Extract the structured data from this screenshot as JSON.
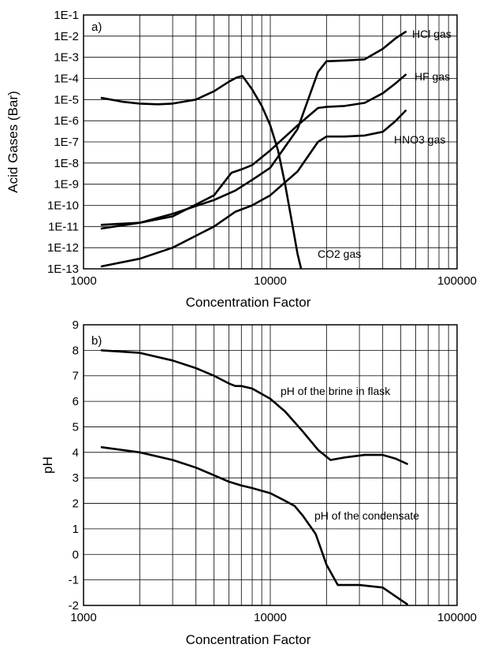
{
  "chart_data": [
    {
      "type": "line",
      "panel_label": "a)",
      "xlabel": "Concentration Factor",
      "ylabel": "Acid Gases (Bar)",
      "xscale": "log",
      "yscale": "log",
      "xlim": [
        1000,
        100000
      ],
      "ylim": [
        1e-13,
        0.1
      ],
      "grid": true,
      "x_ticks": [
        1000,
        10000,
        100000
      ],
      "x_tick_labels": [
        "1000",
        "10000",
        "100000"
      ],
      "y_ticks": [
        1e-13,
        1e-12,
        1e-11,
        1e-10,
        1e-09,
        1e-08,
        1e-07,
        1e-06,
        1e-05,
        0.0001,
        0.001,
        0.01,
        0.1
      ],
      "y_tick_labels": [
        "1E-13",
        "1E-12",
        "1E-11",
        "1E-10",
        "1E-9",
        "1E-8",
        "1E-7",
        "1E-6",
        "1E-5",
        "1E-4",
        "1E-3",
        "1E-2",
        "1E-1"
      ],
      "series": [
        {
          "name": "HCl gas",
          "x": [
            1250,
            2000,
            3000,
            5000,
            6500,
            8000,
            10000,
            14000,
            18000,
            20000,
            25000,
            32000,
            40000,
            47000,
            53000
          ],
          "y": [
            1.2e-11,
            1.5e-11,
            4e-11,
            1.8e-10,
            5e-10,
            1.6e-09,
            6e-09,
            4e-07,
            0.0002,
            0.00065,
            0.0007,
            0.0008,
            0.0025,
            0.008,
            0.016
          ]
        },
        {
          "name": "HF gas",
          "x": [
            1250,
            2000,
            3000,
            5000,
            6200,
            7000,
            8000,
            10000,
            14000,
            18000,
            20000,
            25000,
            32000,
            40000,
            47000,
            53000
          ],
          "y": [
            8e-12,
            1.5e-11,
            3e-11,
            3e-10,
            3.5e-09,
            5e-09,
            8e-09,
            4e-08,
            6e-07,
            4e-06,
            4.5e-06,
            5e-06,
            7e-06,
            2e-05,
            6e-05,
            0.00015
          ]
        },
        {
          "name": "HNO3 gas",
          "x": [
            1250,
            2000,
            3000,
            5000,
            6500,
            8000,
            10000,
            14000,
            18000,
            20000,
            25000,
            32000,
            40000,
            47000,
            53000
          ],
          "y": [
            1.3e-13,
            3e-13,
            1e-12,
            1e-11,
            5e-11,
            1e-10,
            3e-10,
            4e-09,
            1e-07,
            1.8e-07,
            1.8e-07,
            2e-07,
            3e-07,
            1e-06,
            3e-06
          ]
        },
        {
          "name": "CO2 gas",
          "x": [
            1250,
            1600,
            2000,
            2500,
            3000,
            4000,
            5000,
            6000,
            6600,
            7100,
            8000,
            9000,
            10000,
            11000,
            12000,
            13000,
            14000,
            15000
          ],
          "y": [
            1.2e-05,
            8e-06,
            6.5e-06,
            6e-06,
            6.5e-06,
            1e-05,
            2.5e-05,
            7e-05,
            0.00011,
            0.00013,
            3e-05,
            5e-06,
            6e-07,
            4e-08,
            1e-09,
            2e-11,
            5e-13,
            4e-14
          ]
        }
      ],
      "annotations": [
        {
          "text": "HCl gas",
          "series": "HCl gas"
        },
        {
          "text": "HF gas",
          "series": "HF gas"
        },
        {
          "text": "HNO3 gas",
          "series": "HNO3 gas"
        },
        {
          "text": "CO2 gas",
          "series": "CO2 gas"
        }
      ]
    },
    {
      "type": "line",
      "panel_label": "b)",
      "xlabel": "Concentration Factor",
      "ylabel": "pH",
      "xscale": "log",
      "xlim": [
        1000,
        100000
      ],
      "ylim": [
        -2,
        9
      ],
      "grid": true,
      "x_ticks": [
        1000,
        10000,
        100000
      ],
      "x_tick_labels": [
        "1000",
        "10000",
        "100000"
      ],
      "y_ticks": [
        -2,
        -1,
        0,
        1,
        2,
        3,
        4,
        5,
        6,
        7,
        8,
        9
      ],
      "y_tick_labels": [
        "-2",
        "-1",
        "0",
        "1",
        "2",
        "3",
        "4",
        "5",
        "6",
        "7",
        "8",
        "9"
      ],
      "series": [
        {
          "name": "pH of the brine in flask",
          "x": [
            1250,
            2000,
            3000,
            4000,
            5000,
            6000,
            6500,
            7000,
            8000,
            10000,
            12000,
            15000,
            18000,
            21000,
            25000,
            32000,
            40000,
            47000,
            54000
          ],
          "y": [
            8.0,
            7.9,
            7.6,
            7.3,
            7.0,
            6.7,
            6.6,
            6.6,
            6.5,
            6.1,
            5.6,
            4.8,
            4.1,
            3.7,
            3.8,
            3.9,
            3.9,
            3.75,
            3.55
          ]
        },
        {
          "name": "pH of the condensate",
          "x": [
            1250,
            2000,
            3000,
            4000,
            5000,
            6000,
            7000,
            8000,
            10000,
            12000,
            13500,
            15000,
            17500,
            20000,
            23000,
            30000,
            40000,
            47000,
            54000
          ],
          "y": [
            4.2,
            4.0,
            3.7,
            3.4,
            3.1,
            2.85,
            2.7,
            2.6,
            2.4,
            2.1,
            1.9,
            1.5,
            0.8,
            -0.4,
            -1.2,
            -1.2,
            -1.3,
            -1.65,
            -1.95
          ]
        }
      ],
      "annotations": [
        {
          "text": "pH of the brine in flask",
          "series": "pH of the brine in flask"
        },
        {
          "text": "pH of the condensate",
          "series": "pH of the condensate"
        }
      ]
    }
  ]
}
